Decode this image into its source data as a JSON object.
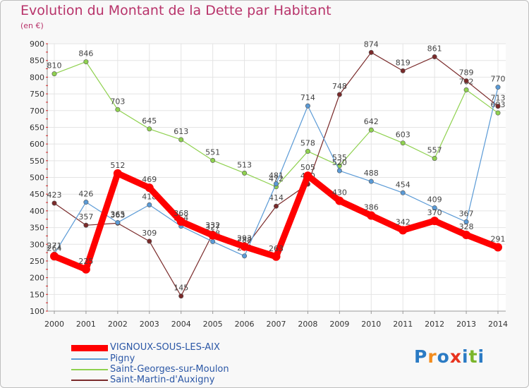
{
  "header": {
    "title": "Evolution du Montant de la Dette par Habitant",
    "subtitle": "(en €)"
  },
  "logo": {
    "text": "Proxiti",
    "colors": [
      "#2b7bc4",
      "#f28c1e",
      "#2b7bc4",
      "#e8331e",
      "#2b7bc4",
      "#7bb52b",
      "#2b7bc4"
    ]
  },
  "chart_data": {
    "type": "line",
    "title": "Evolution du Montant de la Dette par Habitant",
    "subtitle": "(en €)",
    "ylim": [
      100,
      900
    ],
    "yticks": [
      100,
      150,
      200,
      250,
      300,
      350,
      400,
      450,
      500,
      550,
      600,
      650,
      700,
      750,
      800,
      850,
      900
    ],
    "categories": [
      "2000",
      "2001",
      "2002",
      "2003",
      "2004",
      "2005",
      "2006",
      "2007",
      "2008",
      "2009",
      "2010",
      "2011",
      "2012",
      "2013",
      "2014"
    ],
    "grid": true,
    "legend": "bottom-left",
    "series": [
      {
        "name": "Saint-Georges-sur-Moulon",
        "color": "#8fd14f",
        "values": [
          810,
          846,
          703,
          645,
          613,
          551,
          513,
          472,
          578,
          535,
          642,
          603,
          557,
          762,
          693
        ]
      },
      {
        "name": "Saint-Martin-d'Auxigny",
        "color": "#7a2a2a",
        "values": [
          423,
          357,
          363,
          309,
          145,
          332,
          288,
          414,
          480,
          748,
          874,
          819,
          861,
          789,
          713
        ]
      },
      {
        "name": "Pigny",
        "color": "#5a9ad6",
        "values": [
          271,
          426,
          365,
          418,
          354,
          308,
          265,
          481,
          714,
          520,
          488,
          454,
          409,
          367,
          770
        ]
      },
      {
        "name": "VIGNOUX-SOUS-LES-AIX",
        "color": "#ff0000",
        "values": [
          264,
          225,
          512,
          469,
          368,
          327,
          293,
          263,
          505,
          430,
          386,
          342,
          370,
          328,
          291
        ]
      }
    ]
  }
}
